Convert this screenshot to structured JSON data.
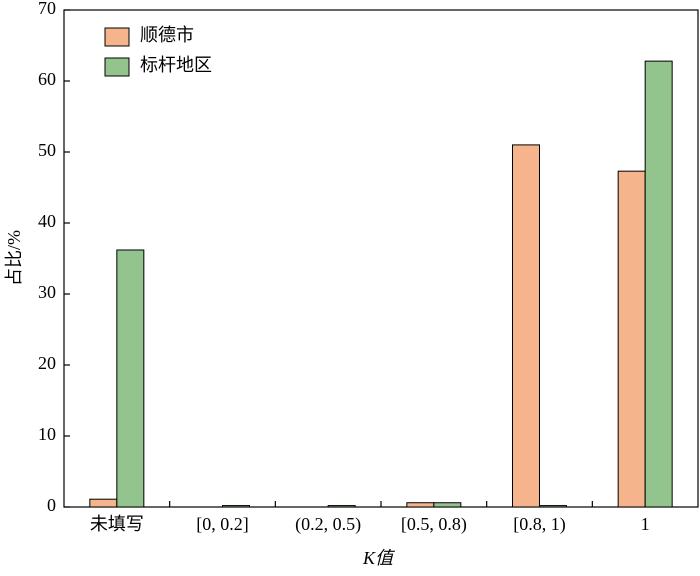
{
  "chart_data": {
    "type": "bar",
    "xlabel": "K值",
    "ylabel": "占比/%",
    "categories": [
      "未填写",
      "[0, 0.2]",
      "(0.2, 0.5)",
      "[0.5, 0.8)",
      "[0.8, 1)",
      "1"
    ],
    "series": [
      {
        "name": "顺德市",
        "color": "#f5b48c",
        "values": [
          1.1,
          0,
          0,
          0.6,
          51,
          47.3
        ]
      },
      {
        "name": "标杆地区",
        "color": "#93c48d",
        "values": [
          36.2,
          0.2,
          0.2,
          0.6,
          0.2,
          62.8
        ]
      }
    ],
    "ylim": [
      0,
      70
    ],
    "yticks": [
      0,
      10,
      20,
      30,
      40,
      50,
      60,
      70
    ],
    "legend": "upper-left"
  }
}
